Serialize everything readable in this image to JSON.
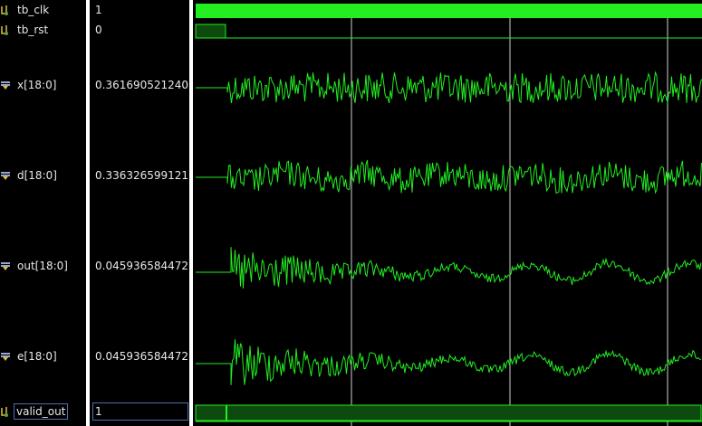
{
  "signals": [
    {
      "name": "tb_clk",
      "value": "1",
      "icon": "wire-icon"
    },
    {
      "name": "tb_rst",
      "value": "0",
      "icon": "wire-icon"
    },
    {
      "name": "x[18:0]",
      "value": "0.361690521240",
      "icon": "bus-icon"
    },
    {
      "name": "d[18:0]",
      "value": "0.336326599121",
      "icon": "bus-icon"
    },
    {
      "name": "out[18:0]",
      "value": "0.045936584472",
      "icon": "bus-icon"
    },
    {
      "name": "e[18:0]",
      "value": "0.045936584472",
      "icon": "bus-icon"
    },
    {
      "name": "valid_out",
      "value": "1",
      "icon": "wire-icon"
    }
  ],
  "colors": {
    "waveform": "#22ee22",
    "cursor": "#d0d0d0",
    "background": "#000000",
    "separator": "#ffffff"
  }
}
